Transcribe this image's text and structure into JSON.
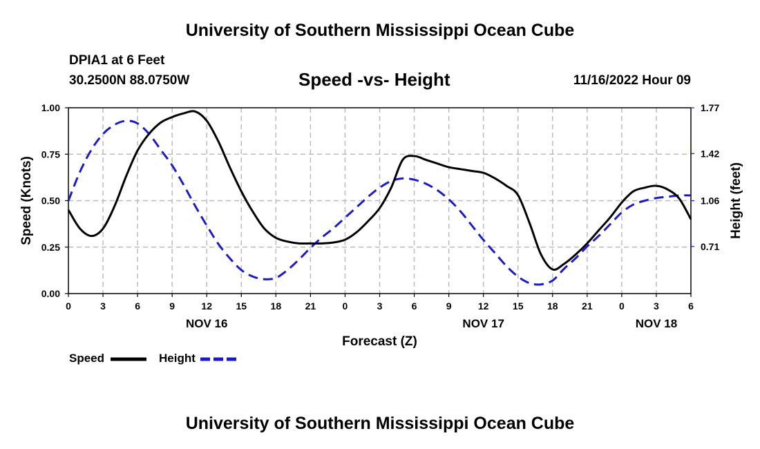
{
  "header": {
    "title": "University of Southern Mississippi Ocean Cube",
    "station": "DPIA1 at 6 Feet",
    "coordinates": "30.2500N  88.0750W",
    "chart_title": "Speed -vs- Height",
    "timestamp": "11/16/2022 Hour 09"
  },
  "footer": {
    "title": "University of Southern Mississippi Ocean Cube"
  },
  "legend": {
    "speed_label": "Speed",
    "height_label": "Height"
  },
  "colors": {
    "speed": "#000000",
    "height": "#1a1acd",
    "grid": "#bbbbbb"
  },
  "chart_data": {
    "type": "line",
    "title": "Speed -vs- Height",
    "xlabel": "Forecast (Z)",
    "ylabel": "Speed (Knots)",
    "y2label": "Height (feet)",
    "xlim": [
      0,
      54
    ],
    "ylim": [
      0,
      1
    ],
    "y2lim": [
      0.35,
      1.77
    ],
    "x_ticks": [
      {
        "x": 0,
        "label": "0"
      },
      {
        "x": 3,
        "label": "3"
      },
      {
        "x": 6,
        "label": "6"
      },
      {
        "x": 9,
        "label": "9"
      },
      {
        "x": 12,
        "label": "12"
      },
      {
        "x": 15,
        "label": "15"
      },
      {
        "x": 18,
        "label": "18"
      },
      {
        "x": 21,
        "label": "21"
      },
      {
        "x": 24,
        "label": "0"
      },
      {
        "x": 27,
        "label": "3"
      },
      {
        "x": 30,
        "label": "6"
      },
      {
        "x": 33,
        "label": "9"
      },
      {
        "x": 36,
        "label": "12"
      },
      {
        "x": 39,
        "label": "15"
      },
      {
        "x": 42,
        "label": "18"
      },
      {
        "x": 45,
        "label": "21"
      },
      {
        "x": 48,
        "label": "0"
      },
      {
        "x": 51,
        "label": "3"
      },
      {
        "x": 54,
        "label": "6"
      }
    ],
    "date_labels": [
      {
        "x": 12,
        "label": "NOV 16"
      },
      {
        "x": 36,
        "label": "NOV 17"
      },
      {
        "x": 51,
        "label": "NOV 18"
      }
    ],
    "y_ticks": [
      {
        "v": 0,
        "label": "0.00"
      },
      {
        "v": 0.25,
        "label": "0.25"
      },
      {
        "v": 0.5,
        "label": "0.50"
      },
      {
        "v": 0.75,
        "label": "0.75"
      },
      {
        "v": 1.0,
        "label": "1.00"
      }
    ],
    "y2_ticks": [
      {
        "v": 0.71,
        "label": "0.71"
      },
      {
        "v": 1.06,
        "label": "1.06"
      },
      {
        "v": 1.42,
        "label": "1.42"
      },
      {
        "v": 1.77,
        "label": "1.77"
      }
    ],
    "series": [
      {
        "name": "Speed",
        "axis": "left",
        "style": "solid",
        "x": [
          0,
          1,
          2,
          3,
          4,
          5,
          6,
          7,
          8,
          9,
          10,
          11,
          12,
          13,
          14,
          15,
          16,
          17,
          18,
          19,
          20,
          21,
          22,
          23,
          24,
          25,
          26,
          27,
          28,
          29,
          30,
          31,
          32,
          33,
          34,
          35,
          36,
          37,
          38,
          39,
          40,
          41,
          42,
          43,
          44,
          45,
          46,
          47,
          48,
          49,
          50,
          51,
          52,
          53,
          54
        ],
        "y": [
          0.45,
          0.35,
          0.31,
          0.35,
          0.47,
          0.63,
          0.77,
          0.86,
          0.92,
          0.95,
          0.97,
          0.98,
          0.93,
          0.82,
          0.68,
          0.55,
          0.44,
          0.35,
          0.3,
          0.28,
          0.27,
          0.27,
          0.27,
          0.275,
          0.29,
          0.33,
          0.39,
          0.46,
          0.57,
          0.72,
          0.74,
          0.72,
          0.7,
          0.68,
          0.67,
          0.66,
          0.65,
          0.62,
          0.58,
          0.53,
          0.38,
          0.21,
          0.13,
          0.16,
          0.21,
          0.27,
          0.34,
          0.41,
          0.49,
          0.55,
          0.57,
          0.58,
          0.56,
          0.51,
          0.4
        ]
      },
      {
        "name": "Height",
        "axis": "right",
        "style": "dashed",
        "x": [
          0,
          1,
          2,
          3,
          4,
          5,
          6,
          7,
          8,
          9,
          10,
          11,
          12,
          13,
          14,
          15,
          16,
          17,
          18,
          19,
          20,
          21,
          22,
          23,
          24,
          25,
          26,
          27,
          28,
          29,
          30,
          31,
          32,
          33,
          34,
          35,
          36,
          37,
          38,
          39,
          40,
          41,
          42,
          43,
          44,
          45,
          46,
          47,
          48,
          49,
          50,
          51,
          52,
          53,
          54
        ],
        "y": [
          1.06,
          1.28,
          1.45,
          1.57,
          1.64,
          1.67,
          1.65,
          1.57,
          1.45,
          1.33,
          1.18,
          1.02,
          0.87,
          0.73,
          0.62,
          0.53,
          0.48,
          0.46,
          0.47,
          0.53,
          0.61,
          0.7,
          0.78,
          0.85,
          0.93,
          1.01,
          1.09,
          1.16,
          1.21,
          1.23,
          1.22,
          1.19,
          1.14,
          1.07,
          0.98,
          0.87,
          0.76,
          0.66,
          0.56,
          0.48,
          0.43,
          0.42,
          0.45,
          0.54,
          0.62,
          0.71,
          0.79,
          0.88,
          0.97,
          1.03,
          1.06,
          1.08,
          1.09,
          1.1,
          1.1
        ]
      }
    ]
  }
}
